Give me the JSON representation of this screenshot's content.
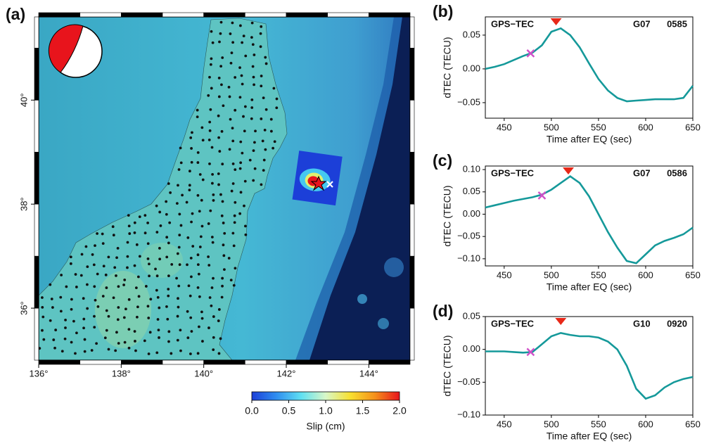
{
  "chart_data": [
    {
      "type": "map",
      "panel_label": "(a)",
      "xlim": [
        136,
        145
      ],
      "ylim": [
        35,
        41.6
      ],
      "xticks": [
        {
          "value": 136,
          "label": "136°"
        },
        {
          "value": 138,
          "label": "138°"
        },
        {
          "value": 140,
          "label": "140°"
        },
        {
          "value": 142,
          "label": "142°"
        },
        {
          "value": 144,
          "label": "144°"
        }
      ],
      "yticks": [
        {
          "value": 36,
          "label": "36°"
        },
        {
          "value": 38,
          "label": "38°"
        },
        {
          "value": 40,
          "label": "40°"
        }
      ],
      "colorbar": {
        "label": "Slip (cm)",
        "lim": [
          0,
          2
        ],
        "ticks": [
          {
            "value": 0,
            "label": "0.0"
          },
          0.5,
          {
            "value": 1,
            "label": "1.0"
          },
          1.5,
          {
            "value": 2,
            "label": "2.0"
          }
        ],
        "colors": [
          "#1c3fd8",
          "#2f8ef0",
          "#5fe0f2",
          "#d8f7c8",
          "#f8e030",
          "#f5901a",
          "#e8141c"
        ]
      }
    },
    {
      "type": "line",
      "panel_label": "(b)",
      "title": "GPS−TEC",
      "satellite": "G07",
      "station": "0585",
      "x_label": "Time after EQ (sec)",
      "y_label": "dTEC (TECU)",
      "color": "#15999a",
      "xlim": [
        430,
        650
      ],
      "ylim": [
        -0.073,
        0.077
      ],
      "xticks": [
        450,
        500,
        550,
        600,
        650
      ],
      "yticks": [
        0.05,
        {
          "value": 0,
          "label": "0.00"
        },
        {
          "value": -0.05,
          "label": "−0.05"
        }
      ],
      "x": [
        430,
        440,
        450,
        460,
        470,
        480,
        490,
        500,
        510,
        520,
        530,
        540,
        550,
        560,
        570,
        580,
        590,
        600,
        610,
        620,
        630,
        640,
        650
      ],
      "values": [
        0.0,
        0.003,
        0.007,
        0.013,
        0.019,
        0.024,
        0.035,
        0.055,
        0.06,
        0.05,
        0.032,
        0.008,
        -0.015,
        -0.032,
        -0.043,
        -0.048,
        -0.047,
        -0.046,
        -0.045,
        -0.045,
        -0.045,
        -0.043,
        -0.025
      ],
      "cross": {
        "x": 478,
        "y": 0.023,
        "color": "#d050c8"
      },
      "peak": {
        "x": 505,
        "color": "#e82818"
      }
    },
    {
      "type": "line",
      "panel_label": "(c)",
      "title": "GPS−TEC",
      "satellite": "G07",
      "station": "0586",
      "x_label": "Time after EQ (sec)",
      "y_label": "dTEC (TECU)",
      "color": "#15999a",
      "xlim": [
        430,
        650
      ],
      "ylim": [
        -0.116,
        0.108
      ],
      "xticks": [
        450,
        500,
        550,
        600,
        650
      ],
      "yticks": [
        {
          "value": 0.1,
          "label": "0.10"
        },
        0.05,
        {
          "value": 0,
          "label": "0.00"
        },
        {
          "value": -0.05,
          "label": "−0.05"
        },
        {
          "value": -0.1,
          "label": "−0.10"
        }
      ],
      "x": [
        430,
        440,
        450,
        460,
        470,
        480,
        490,
        500,
        510,
        520,
        530,
        540,
        550,
        560,
        570,
        580,
        590,
        600,
        610,
        620,
        630,
        640,
        650
      ],
      "values": [
        0.015,
        0.02,
        0.025,
        0.03,
        0.034,
        0.038,
        0.044,
        0.055,
        0.07,
        0.085,
        0.07,
        0.04,
        0.0,
        -0.04,
        -0.075,
        -0.105,
        -0.11,
        -0.09,
        -0.07,
        -0.06,
        -0.053,
        -0.045,
        -0.03
      ],
      "cross": {
        "x": 490,
        "y": 0.042,
        "color": "#d050c8"
      },
      "peak": {
        "x": 518,
        "color": "#e82818"
      }
    },
    {
      "type": "line",
      "panel_label": "(d)",
      "title": "GPS−TEC",
      "satellite": "G10",
      "station": "0920",
      "x_label": "Time after EQ (sec)",
      "y_label": "dTEC (TECU)",
      "color": "#15999a",
      "xlim": [
        430,
        650
      ],
      "ylim": [
        -0.1,
        0.05
      ],
      "xticks": [
        450,
        500,
        550,
        600,
        650
      ],
      "yticks": [
        0.05,
        {
          "value": 0,
          "label": "0.00"
        },
        {
          "value": -0.05,
          "label": "−0.05"
        },
        {
          "value": -0.1,
          "label": "−0.10"
        }
      ],
      "x": [
        430,
        440,
        450,
        460,
        470,
        480,
        490,
        500,
        510,
        520,
        530,
        540,
        550,
        560,
        570,
        580,
        590,
        600,
        610,
        620,
        630,
        640,
        650
      ],
      "values": [
        -0.003,
        -0.003,
        -0.003,
        -0.004,
        -0.005,
        -0.004,
        0.008,
        0.02,
        0.025,
        0.022,
        0.02,
        0.02,
        0.018,
        0.012,
        0.0,
        -0.025,
        -0.06,
        -0.075,
        -0.07,
        -0.058,
        -0.05,
        -0.045,
        -0.042
      ],
      "cross": {
        "x": 478,
        "y": -0.004,
        "color": "#d050c8"
      },
      "peak": {
        "x": 510,
        "color": "#e82818"
      }
    }
  ]
}
